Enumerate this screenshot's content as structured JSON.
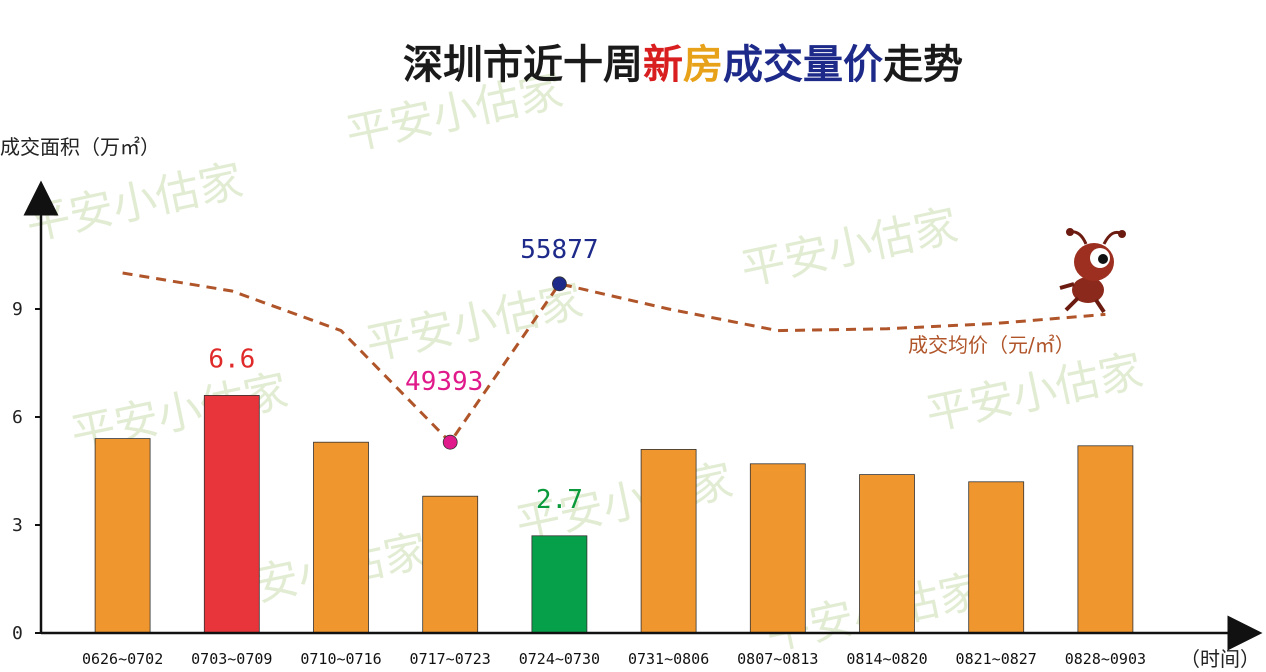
{
  "title_parts": [
    {
      "text": "深圳市近十周",
      "color": "#1a1a1a"
    },
    {
      "text": "新",
      "color": "#d81e1e"
    },
    {
      "text": "房",
      "color": "#e8a21a"
    },
    {
      "text": "成交",
      "color": "#1d2a8a"
    },
    {
      "text": "量价",
      "color": "#1d2a8a"
    },
    {
      "text": "走势",
      "color": "#1a1a1a"
    }
  ],
  "watermark": "平安小估家",
  "mascot_icon": "ant-mascot-icon",
  "chart_data": {
    "type": "bar",
    "ylabel": "成交面积（万㎡）",
    "xlabel": "（时间）",
    "yticks": [
      0,
      3,
      6,
      9
    ],
    "ylim": [
      0,
      11
    ],
    "categories": [
      "0626~0702",
      "0703~0709",
      "0710~0716",
      "0717~0723",
      "0724~0730",
      "0731~0806",
      "0807~0813",
      "0814~0820",
      "0821~0827",
      "0828~0903"
    ],
    "series": [
      {
        "name": "",
        "values": [
          5.4,
          6.6,
          5.3,
          3.8,
          2.7,
          5.1,
          4.7,
          4.4,
          4.2,
          5.2
        ]
      }
    ],
    "bar_colors": [
      "#f0962e",
      "#e8353b",
      "#f0962e",
      "#f0962e",
      "#07a04a",
      "#f0962e",
      "#f0962e",
      "#f0962e",
      "#f0962e",
      "#f0962e"
    ],
    "bar_labels": [
      {
        "index": 1,
        "text": "6.6",
        "color": "#e02a2a"
      },
      {
        "index": 4,
        "text": "2.7",
        "color": "#0a9a3c"
      }
    ],
    "price_line": {
      "name": "成交均价（元/㎡）",
      "color": "#b0552a",
      "dash": true,
      "levels": [
        10.0,
        9.5,
        8.4,
        5.3,
        9.7,
        9.0,
        8.4,
        8.45,
        8.6,
        8.85
      ],
      "markers": [
        {
          "index": 3,
          "text": "49393",
          "color": "#e01a8a"
        },
        {
          "index": 4,
          "text": "55877",
          "color": "#1d2a8a"
        }
      ]
    }
  }
}
